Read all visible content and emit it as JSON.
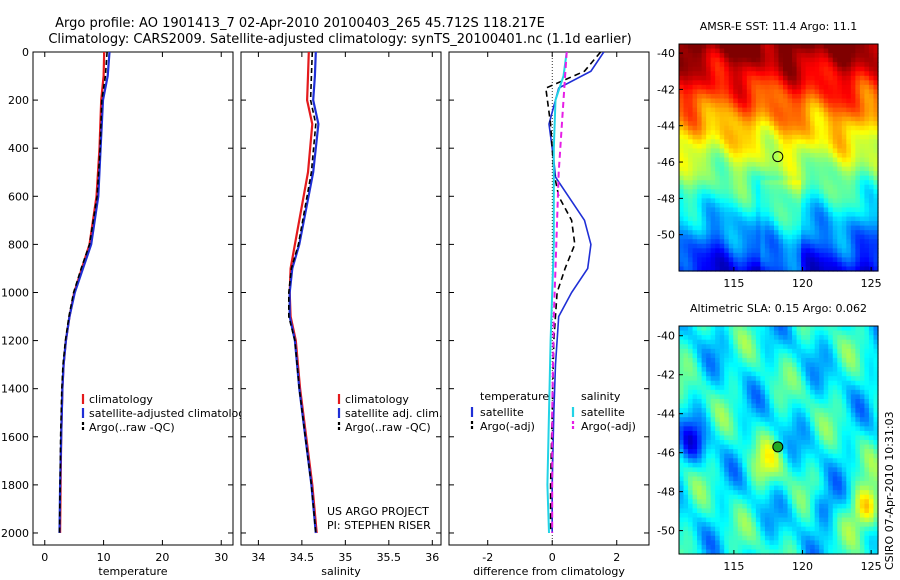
{
  "header": {
    "title_line1": "Argo profile: AO 1901413_7 02-Apr-2010 20100403_265 45.712S 118.217E",
    "title_line2": "Climatology: CARS2009. Satellite-adjusted climatology: synTS_20100401.nc (1.1d earlier)"
  },
  "footer_note": {
    "line1": "US ARGO PROJECT",
    "line2": "PI: STEPHEN RISER"
  },
  "side_stamp": "CSIRO 07-Apr-2010 10:31:03",
  "colors": {
    "climatology": "#e41a1c",
    "satellite": "#1f2fd6",
    "argo": "#000000",
    "sal_satellite": "#22d3e6",
    "sal_argo": "#e61ee6"
  },
  "chart_data": [
    {
      "id": "temperature",
      "type": "line",
      "xlabel": "temperature",
      "ylabel": "",
      "xlim": [
        -2,
        32
      ],
      "ylim": [
        2050,
        0
      ],
      "xticks": [
        0,
        10,
        20,
        30
      ],
      "yticks": [
        0,
        200,
        400,
        600,
        800,
        1000,
        1200,
        1400,
        1600,
        1800,
        2000
      ],
      "legend": [
        "climatology",
        "satellite-adjusted climatology",
        "Argo(..raw -QC)"
      ],
      "series": [
        {
          "name": "climatology",
          "color": "#e41a1c",
          "dash": "",
          "width": 2.2,
          "x": [
            10.1,
            10.0,
            9.6,
            9.3,
            8.8,
            7.6,
            6.3,
            5.0,
            4.2,
            3.6,
            3.2,
            3.0,
            2.9,
            2.8,
            2.7,
            2.6
          ],
          "y": [
            0,
            100,
            200,
            400,
            600,
            800,
            900,
            1000,
            1100,
            1200,
            1300,
            1400,
            1500,
            1600,
            1800,
            2000
          ]
        },
        {
          "name": "satellite-adjusted climatology",
          "color": "#1f2fd6",
          "dash": "",
          "width": 2.2,
          "x": [
            11.0,
            10.7,
            9.9,
            9.5,
            9.1,
            7.9,
            6.5,
            5.1,
            4.2,
            3.6,
            3.2,
            3.0,
            2.9,
            2.8,
            2.6,
            2.5
          ],
          "y": [
            0,
            100,
            200,
            400,
            600,
            800,
            900,
            1000,
            1100,
            1200,
            1300,
            1400,
            1500,
            1600,
            1800,
            2000
          ]
        },
        {
          "name": "Argo(..raw -QC)",
          "color": "#000000",
          "dash": "5,3",
          "width": 1.6,
          "x": [
            10.6,
            10.3,
            9.7,
            9.4,
            8.9,
            7.6,
            6.2,
            4.9,
            4.1,
            3.5,
            3.1,
            2.9,
            2.8,
            2.7,
            2.6,
            2.5
          ],
          "y": [
            0,
            100,
            200,
            400,
            600,
            800,
            900,
            1000,
            1100,
            1200,
            1300,
            1400,
            1500,
            1600,
            1800,
            2000
          ]
        }
      ]
    },
    {
      "id": "salinity",
      "type": "line",
      "xlabel": "salinity",
      "ylabel": "",
      "xlim": [
        33.8,
        36.1
      ],
      "ylim": [
        2050,
        0
      ],
      "xticks": [
        34,
        34.5,
        35,
        35.5,
        36
      ],
      "xtick_labels": [
        "34",
        "34.5",
        "35",
        "35.5",
        "36"
      ],
      "yticks": [
        0,
        200,
        400,
        600,
        800,
        1000,
        1200,
        1400,
        1600,
        1800,
        2000
      ],
      "legend": [
        "climatology",
        "satellite adj. clim.",
        "Argo(..raw -QC)"
      ],
      "series": [
        {
          "name": "climatology",
          "color": "#e41a1c",
          "dash": "",
          "width": 2.2,
          "x": [
            34.58,
            34.57,
            34.56,
            34.62,
            34.57,
            34.42,
            34.37,
            34.36,
            34.37,
            34.43,
            34.48,
            34.55,
            34.62,
            34.67
          ],
          "y": [
            0,
            100,
            200,
            300,
            500,
            800,
            900,
            1000,
            1100,
            1200,
            1400,
            1600,
            1800,
            2000
          ]
        },
        {
          "name": "satellite adj. clim.",
          "color": "#1f2fd6",
          "dash": "",
          "width": 2.2,
          "x": [
            34.66,
            34.65,
            34.63,
            34.69,
            34.63,
            34.47,
            34.39,
            34.36,
            34.36,
            34.42,
            34.47,
            34.54,
            34.61,
            34.66
          ],
          "y": [
            0,
            100,
            200,
            300,
            500,
            800,
            900,
            1000,
            1100,
            1200,
            1400,
            1600,
            1800,
            2000
          ]
        },
        {
          "name": "Argo(..raw -QC)",
          "color": "#000000",
          "dash": "5,3",
          "width": 1.6,
          "x": [
            34.62,
            34.61,
            34.6,
            34.66,
            34.61,
            34.46,
            34.38,
            34.35,
            34.35,
            34.42,
            34.47,
            34.54,
            34.61,
            34.66
          ],
          "y": [
            0,
            100,
            200,
            300,
            500,
            800,
            900,
            1000,
            1100,
            1200,
            1400,
            1600,
            1800,
            2000
          ]
        }
      ]
    },
    {
      "id": "difference",
      "type": "line",
      "xlabel": "difference from climatology",
      "ylabel": "",
      "xlim": [
        -3.2,
        3.0
      ],
      "ylim": [
        2050,
        0
      ],
      "xticks": [
        -2,
        0,
        2
      ],
      "yticks": [
        0,
        200,
        400,
        600,
        800,
        1000,
        1200,
        1400,
        1600,
        1800,
        2000
      ],
      "legend_headers": [
        "temperature",
        "salinity"
      ],
      "legend": [
        "satellite",
        "Argo(-adj)",
        "satellite",
        "Argo(-adj)"
      ],
      "series": [
        {
          "name": "satellite",
          "group": "temperature",
          "color": "#1f2fd6",
          "dash": "",
          "width": 1.6,
          "x": [
            1.6,
            1.2,
            0.2,
            -0.1,
            0.05,
            0.1,
            0.5,
            1.0,
            1.2,
            1.1,
            0.6,
            0.2,
            0.1,
            0.05,
            0.0,
            0.0
          ],
          "y": [
            0,
            80,
            150,
            300,
            450,
            520,
            600,
            700,
            800,
            900,
            1000,
            1100,
            1300,
            1500,
            1800,
            2000
          ]
        },
        {
          "name": "Argo(-adj)",
          "group": "temperature",
          "color": "#000000",
          "dash": "6,4",
          "width": 1.6,
          "x": [
            1.5,
            1.0,
            -0.2,
            -0.05,
            0.05,
            0.2,
            0.6,
            0.7,
            0.4,
            0.15,
            0.05,
            0.0,
            -0.05,
            -0.05
          ],
          "y": [
            0,
            80,
            150,
            300,
            500,
            600,
            700,
            800,
            900,
            1000,
            1200,
            1500,
            1800,
            2000
          ]
        },
        {
          "name": "satellite",
          "group": "salinity",
          "color": "#22d3e6",
          "dash": "",
          "width": 2.0,
          "x": [
            0.45,
            0.35,
            0.1,
            0.05,
            0.05,
            0.05,
            0.0,
            -0.05,
            -0.1,
            -0.15,
            -0.1
          ],
          "y": [
            0,
            100,
            200,
            400,
            600,
            800,
            1000,
            1200,
            1500,
            1800,
            2000
          ]
        },
        {
          "name": "Argo(-adj)",
          "group": "salinity",
          "color": "#e61ee6",
          "dash": "6,4",
          "width": 2.0,
          "x": [
            0.45,
            0.4,
            0.3,
            0.2,
            0.15,
            0.1,
            0.05,
            0.0,
            0.0
          ],
          "y": [
            0,
            100,
            300,
            500,
            700,
            900,
            1100,
            1500,
            2000
          ]
        }
      ]
    },
    {
      "id": "sst_map",
      "type": "heatmap",
      "title": "AMSR-E SST: 11.4 Argo: 11.1",
      "xlim": [
        111,
        125.5
      ],
      "ylim": [
        -52,
        -39.5
      ],
      "xticks": [
        115,
        120,
        125
      ],
      "yticks": [
        -40,
        -42,
        -44,
        -46,
        -48,
        -50
      ],
      "marker": {
        "lon": 118.2,
        "lat": -45.7,
        "fill": "none"
      },
      "field": "sst"
    },
    {
      "id": "sla_map",
      "type": "heatmap",
      "title": "Altimetric SLA: 0.15 Argo: 0.062",
      "xlim": [
        111,
        125.5
      ],
      "ylim": [
        -51.2,
        -39.5
      ],
      "xticks": [
        115,
        120,
        125
      ],
      "yticks": [
        -40,
        -42,
        -44,
        -46,
        -48,
        -50
      ],
      "marker": {
        "lon": 118.2,
        "lat": -45.7,
        "fill": "#22aa22"
      },
      "field": "sla"
    }
  ]
}
